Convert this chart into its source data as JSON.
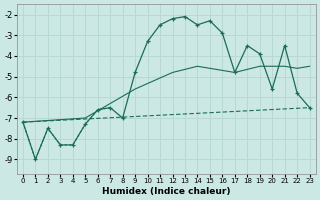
{
  "xlabel": "Humidex (Indice chaleur)",
  "bg_color": "#cce8e4",
  "grid_color": "#b8d8d4",
  "line_color": "#1a6b5a",
  "xlim": [
    -0.5,
    23.5
  ],
  "ylim": [
    -9.7,
    -1.5
  ],
  "yticks": [
    -9,
    -8,
    -7,
    -6,
    -5,
    -4,
    -3,
    -2
  ],
  "xticks": [
    0,
    1,
    2,
    3,
    4,
    5,
    6,
    7,
    8,
    9,
    10,
    11,
    12,
    13,
    14,
    15,
    16,
    17,
    18,
    19,
    20,
    21,
    22,
    23
  ],
  "main_curve_x": [
    0,
    1,
    2,
    3,
    4,
    5,
    6,
    7,
    8,
    9,
    10,
    11,
    12,
    13,
    14,
    15,
    16,
    17,
    18,
    19,
    20,
    21,
    22,
    23
  ],
  "main_curve_y": [
    -7.2,
    -9.0,
    -7.5,
    -8.3,
    -8.3,
    -7.3,
    -6.6,
    -6.5,
    -7.0,
    -4.8,
    -3.3,
    -2.5,
    -2.2,
    -2.1,
    -2.5,
    -2.3,
    -2.9,
    -4.8,
    -3.5,
    -3.9,
    -5.6,
    -3.5,
    -5.8,
    -6.5
  ],
  "dotted_early_x": [
    0,
    1,
    2,
    3,
    4,
    5,
    6,
    7
  ],
  "dotted_early_y": [
    -7.2,
    -9.0,
    -7.5,
    -8.3,
    -8.3,
    -7.3,
    -6.6,
    -6.5
  ],
  "middle_line_x": [
    0,
    5,
    9,
    12,
    14,
    17,
    19,
    21,
    22,
    23
  ],
  "middle_line_y": [
    -7.2,
    -7.0,
    -5.6,
    -4.8,
    -4.5,
    -4.8,
    -4.5,
    -4.5,
    -4.6,
    -4.5
  ],
  "bottom_line_x": [
    0,
    23
  ],
  "bottom_line_y": [
    -7.2,
    -6.5
  ]
}
